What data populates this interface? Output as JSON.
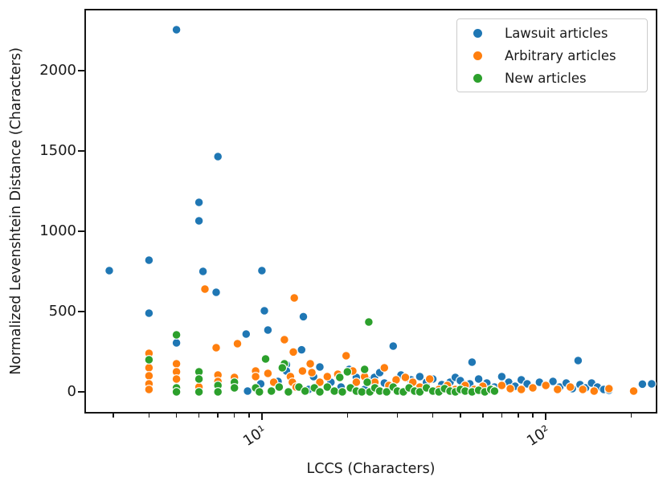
{
  "chart_data": {
    "type": "scatter",
    "title": "",
    "xlabel": "LCCS (Characters)",
    "ylabel": "Normalized Levenshtein Distance (Characters)",
    "x_scale": "log",
    "y_scale": "linear",
    "xlim": [
      2.4,
      244
    ],
    "ylim": [
      -125,
      2375
    ],
    "grid": false,
    "legend_position": "upper right",
    "axis_color": "#161616",
    "x_major_ticks": [
      {
        "value": 10,
        "label": "10¹"
      },
      {
        "value": 100,
        "label": "10²"
      }
    ],
    "x_minor_ticks": [
      3,
      4,
      5,
      6,
      7,
      8,
      9,
      20,
      30,
      40,
      50,
      60,
      70,
      80,
      90,
      200
    ],
    "y_ticks": [
      {
        "value": 0,
        "label": "0"
      },
      {
        "value": 500,
        "label": "500"
      },
      {
        "value": 1000,
        "label": "1000"
      },
      {
        "value": 1500,
        "label": "1500"
      },
      {
        "value": 2000,
        "label": "2000"
      }
    ],
    "marker": {
      "radius": 5.3,
      "edge_color": "#ffffff",
      "edge_width": 1.1
    },
    "series": [
      {
        "name": "Lawsuit articles",
        "color": "#1f77b4",
        "points": [
          [
            5,
            2255
          ],
          [
            7,
            1465
          ],
          [
            6,
            1180
          ],
          [
            6,
            1065
          ],
          [
            4,
            820
          ],
          [
            2.9,
            755
          ],
          [
            6.2,
            750
          ],
          [
            10,
            755
          ],
          [
            6.9,
            620
          ],
          [
            10.2,
            505
          ],
          [
            4,
            490
          ],
          [
            14,
            468
          ],
          [
            10.5,
            385
          ],
          [
            8.8,
            360
          ],
          [
            5,
            305
          ],
          [
            29,
            285
          ],
          [
            13.8,
            262
          ],
          [
            55,
            185
          ],
          [
            130,
            195
          ],
          [
            12.2,
            170
          ],
          [
            12.2,
            130
          ],
          [
            16,
            155
          ],
          [
            20.3,
            140
          ],
          [
            24.4,
            75
          ],
          [
            24.9,
            90
          ],
          [
            30.9,
            105
          ],
          [
            27,
            55
          ],
          [
            9.9,
            50
          ],
          [
            8.9,
            5
          ],
          [
            11.4,
            65
          ],
          [
            13.2,
            35
          ],
          [
            14.6,
            15
          ],
          [
            15.2,
            95
          ],
          [
            17.5,
            60
          ],
          [
            19,
            30
          ],
          [
            21.5,
            90
          ],
          [
            23,
            15
          ],
          [
            26,
            120
          ],
          [
            33.5,
            75
          ],
          [
            36,
            95
          ],
          [
            34,
            35
          ],
          [
            38,
            60
          ],
          [
            40,
            80
          ],
          [
            43,
            45
          ],
          [
            46,
            60
          ],
          [
            48,
            90
          ],
          [
            50,
            70
          ],
          [
            52,
            30
          ],
          [
            54,
            50
          ],
          [
            58,
            80
          ],
          [
            62,
            55
          ],
          [
            66,
            30
          ],
          [
            70,
            95
          ],
          [
            74,
            60
          ],
          [
            78,
            35
          ],
          [
            82,
            75
          ],
          [
            86,
            50
          ],
          [
            90,
            25
          ],
          [
            95,
            60
          ],
          [
            100,
            40
          ],
          [
            106,
            65
          ],
          [
            112,
            30
          ],
          [
            118,
            55
          ],
          [
            124,
            20
          ],
          [
            132,
            45
          ],
          [
            138,
            25
          ],
          [
            145,
            55
          ],
          [
            152,
            30
          ],
          [
            160,
            15
          ],
          [
            167,
            10
          ],
          [
            219,
            48
          ],
          [
            236,
            50
          ]
        ]
      },
      {
        "name": "Arbitrary articles",
        "color": "#ff7f0e",
        "points": [
          [
            6.3,
            640
          ],
          [
            13,
            585
          ],
          [
            12,
            325
          ],
          [
            8.2,
            300
          ],
          [
            6.9,
            275
          ],
          [
            12.9,
            248
          ],
          [
            19.8,
            225
          ],
          [
            14.8,
            175
          ],
          [
            27,
            150
          ],
          [
            13.9,
            130
          ],
          [
            20.9,
            130
          ],
          [
            29.7,
            75
          ],
          [
            4,
            240
          ],
          [
            4,
            150
          ],
          [
            4,
            100
          ],
          [
            4,
            50
          ],
          [
            4,
            15
          ],
          [
            5,
            175
          ],
          [
            5,
            125
          ],
          [
            5,
            80
          ],
          [
            6,
            30
          ],
          [
            7,
            105
          ],
          [
            7,
            65
          ],
          [
            8,
            90
          ],
          [
            8,
            55
          ],
          [
            9.5,
            130
          ],
          [
            9.5,
            95
          ],
          [
            10.5,
            115
          ],
          [
            11,
            60
          ],
          [
            12.6,
            95
          ],
          [
            12.8,
            60
          ],
          [
            13.2,
            30
          ],
          [
            15,
            120
          ],
          [
            16,
            60
          ],
          [
            17,
            95
          ],
          [
            18.5,
            110
          ],
          [
            21.5,
            60
          ],
          [
            23,
            95
          ],
          [
            25,
            60
          ],
          [
            28,
            40
          ],
          [
            32,
            90
          ],
          [
            34,
            60
          ],
          [
            36,
            30
          ],
          [
            39,
            80
          ],
          [
            42,
            15
          ],
          [
            45,
            40
          ],
          [
            48,
            15
          ],
          [
            52,
            40
          ],
          [
            56,
            15
          ],
          [
            60,
            35
          ],
          [
            65,
            15
          ],
          [
            70,
            40
          ],
          [
            75,
            20
          ],
          [
            82,
            15
          ],
          [
            90,
            25
          ],
          [
            100,
            40
          ],
          [
            110,
            15
          ],
          [
            122,
            30
          ],
          [
            135,
            15
          ],
          [
            148,
            5
          ],
          [
            167,
            20
          ],
          [
            204,
            5
          ]
        ]
      },
      {
        "name": "New articles",
        "color": "#2ca02c",
        "points": [
          [
            23.8,
            435
          ],
          [
            5,
            355
          ],
          [
            4,
            200
          ],
          [
            5,
            25
          ],
          [
            5,
            0
          ],
          [
            6,
            125
          ],
          [
            6,
            80
          ],
          [
            6,
            0
          ],
          [
            7,
            40
          ],
          [
            7,
            0
          ],
          [
            8,
            60
          ],
          [
            8,
            25
          ],
          [
            10.3,
            205
          ],
          [
            12,
            175
          ],
          [
            11.8,
            150
          ],
          [
            20,
            125
          ],
          [
            23,
            140
          ],
          [
            18.8,
            90
          ],
          [
            23.5,
            60
          ],
          [
            9.5,
            25
          ],
          [
            9.8,
            0
          ],
          [
            10.8,
            5
          ],
          [
            11.5,
            30
          ],
          [
            12.4,
            0
          ],
          [
            13.5,
            30
          ],
          [
            14.2,
            5
          ],
          [
            15.3,
            25
          ],
          [
            16,
            0
          ],
          [
            17,
            30
          ],
          [
            18,
            5
          ],
          [
            19.2,
            0
          ],
          [
            20.5,
            25
          ],
          [
            21.5,
            5
          ],
          [
            22.5,
            0
          ],
          [
            24,
            0
          ],
          [
            25,
            25
          ],
          [
            26,
            5
          ],
          [
            27.5,
            0
          ],
          [
            29,
            30
          ],
          [
            30,
            5
          ],
          [
            31.5,
            0
          ],
          [
            33,
            25
          ],
          [
            34.5,
            5
          ],
          [
            36,
            0
          ],
          [
            38,
            25
          ],
          [
            40,
            5
          ],
          [
            42,
            0
          ],
          [
            44,
            20
          ],
          [
            46,
            5
          ],
          [
            48,
            0
          ],
          [
            50,
            15
          ],
          [
            52,
            5
          ],
          [
            55,
            0
          ],
          [
            58,
            10
          ],
          [
            61,
            0
          ],
          [
            64,
            15
          ],
          [
            66,
            5
          ]
        ]
      }
    ]
  }
}
